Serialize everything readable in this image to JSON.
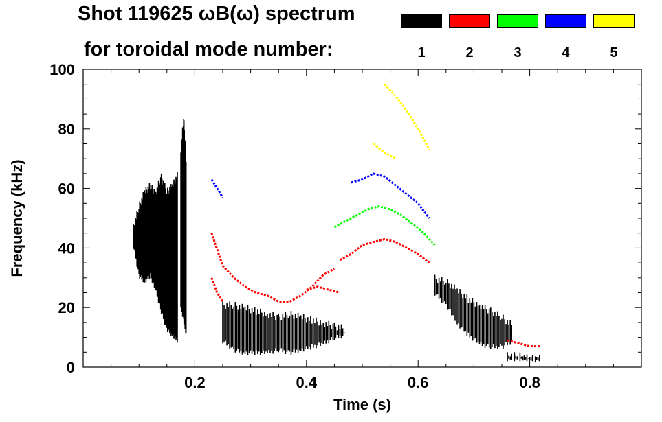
{
  "title_line1": "Shot 119625 ωB(ω) spectrum",
  "title_line2": "for toroidal mode number:",
  "legend": [
    {
      "mode": "1",
      "color": "#000000"
    },
    {
      "mode": "2",
      "color": "#ff0000"
    },
    {
      "mode": "3",
      "color": "#00ff00"
    },
    {
      "mode": "4",
      "color": "#0000ff"
    },
    {
      "mode": "5",
      "color": "#ffff00"
    }
  ],
  "chart_data": {
    "type": "scatter",
    "title": "Shot 119625 ωB(ω) spectrum for toroidal mode number",
    "xlabel": "Time (s)",
    "ylabel": "Frequency (kHz)",
    "xlim": [
      0.0,
      1.0
    ],
    "ylim": [
      0,
      100
    ],
    "x_ticks": [
      0.2,
      0.4,
      0.6,
      0.8
    ],
    "x_tick_labels": [
      "0.2",
      "0.4",
      "0.6",
      "0.8"
    ],
    "y_ticks": [
      0,
      20,
      40,
      60,
      80,
      100
    ],
    "y_tick_labels": [
      "0",
      "20",
      "40",
      "60",
      "80",
      "100"
    ],
    "series": [
      {
        "name": "n=1",
        "color": "#000000",
        "segments": [
          {
            "x": [
              0.09,
              0.1,
              0.11,
              0.12,
              0.13,
              0.14,
              0.15,
              0.16,
              0.17
            ],
            "low": [
              40,
              30,
              28,
              30,
              25,
              18,
              12,
              10,
              8
            ],
            "high": [
              48,
              55,
              60,
              62,
              60,
              65,
              60,
              62,
              66
            ]
          },
          {
            "x": [
              0.175,
              0.18,
              0.185
            ],
            "low": [
              20,
              15,
              10
            ],
            "high": [
              72,
              85,
              68
            ]
          },
          {
            "x": [
              0.25,
              0.27,
              0.29,
              0.31,
              0.33,
              0.35,
              0.37,
              0.39,
              0.41,
              0.43,
              0.45,
              0.47
            ],
            "low": [
              8,
              5,
              4,
              4,
              4,
              5,
              4,
              5,
              6,
              7,
              9,
              10
            ],
            "high": [
              22,
              22,
              21,
              20,
              19,
              18,
              19,
              18,
              17,
              16,
              15,
              14
            ]
          },
          {
            "x": [
              0.63,
              0.65,
              0.67,
              0.69,
              0.71,
              0.73,
              0.75,
              0.77
            ],
            "low": [
              24,
              20,
              14,
              10,
              7,
              6,
              6,
              8
            ],
            "high": [
              31,
              30,
              27,
              24,
              22,
              20,
              18,
              15
            ]
          },
          {
            "x": [
              0.76,
              0.78,
              0.8,
              0.82
            ],
            "low": [
              2,
              2,
              2,
              2
            ],
            "high": [
              5,
              5,
              4,
              4
            ]
          }
        ]
      },
      {
        "name": "n=2",
        "color": "#ff0000",
        "segments": [
          {
            "x": [
              0.23,
              0.25,
              0.27,
              0.29,
              0.31,
              0.33,
              0.35,
              0.37,
              0.39,
              0.41,
              0.43,
              0.45
            ],
            "y": [
              45,
              34,
              30,
              27,
              25,
              24,
              22,
              22,
              24,
              27,
              31,
              33
            ]
          },
          {
            "x": [
              0.46,
              0.48,
              0.5,
              0.52,
              0.54,
              0.56,
              0.58,
              0.6,
              0.62
            ],
            "y": [
              36,
              38,
              41,
              42,
              43,
              42,
              40,
              38,
              35
            ]
          },
          {
            "x": [
              0.4,
              0.42,
              0.44,
              0.46
            ],
            "y": [
              26,
              27,
              26,
              25
            ]
          },
          {
            "x": [
              0.23,
              0.24,
              0.25
            ],
            "y": [
              30,
              25,
              22
            ]
          },
          {
            "x": [
              0.76,
              0.78,
              0.8,
              0.82
            ],
            "y": [
              9,
              8,
              7,
              7
            ]
          }
        ]
      },
      {
        "name": "n=3",
        "color": "#00ff00",
        "segments": [
          {
            "x": [
              0.45,
              0.47,
              0.49,
              0.51,
              0.53,
              0.55,
              0.57,
              0.59,
              0.61,
              0.63
            ],
            "y": [
              47,
              49,
              51,
              53,
              54,
              53,
              51,
              48,
              45,
              41
            ]
          }
        ]
      },
      {
        "name": "n=4",
        "color": "#0000ff",
        "segments": [
          {
            "x": [
              0.48,
              0.5,
              0.52,
              0.54,
              0.56,
              0.58,
              0.6,
              0.62
            ],
            "y": [
              62,
              63,
              65,
              64,
              61,
              58,
              55,
              50
            ]
          },
          {
            "x": [
              0.23,
              0.24,
              0.25
            ],
            "y": [
              63,
              60,
              57
            ]
          }
        ]
      },
      {
        "name": "n=5",
        "color": "#ffff00",
        "segments": [
          {
            "x": [
              0.54,
              0.56,
              0.58,
              0.6,
              0.62
            ],
            "y": [
              95,
              91,
              86,
              80,
              73
            ]
          },
          {
            "x": [
              0.52,
              0.54,
              0.56
            ],
            "y": [
              75,
              72,
              70
            ]
          }
        ]
      }
    ]
  }
}
